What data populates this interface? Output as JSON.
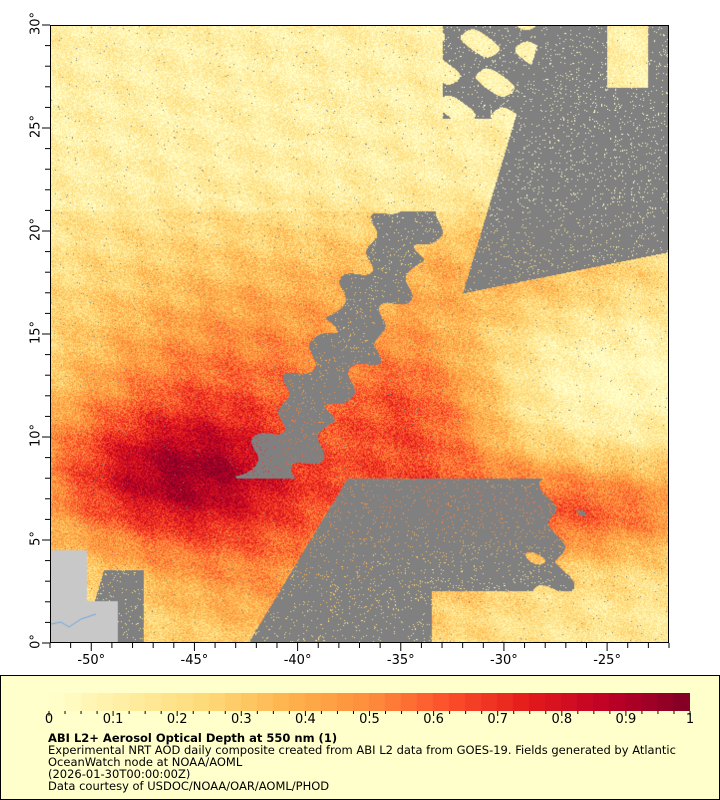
{
  "map": {
    "variable": "Aerosol Optical Depth at 550 nm",
    "lat_range": [
      0,
      30
    ],
    "lon_range": [
      -52,
      -22
    ],
    "mask_color": "#808080",
    "land_color": "#c8c8c8",
    "river_color": "#6fa8dc",
    "y_ticks": [
      "0°",
      "5°",
      "10°",
      "15°",
      "20°",
      "25°",
      "30°"
    ],
    "x_ticks": [
      "-50°",
      "-45°",
      "-40°",
      "-35°",
      "-30°",
      "-25°"
    ]
  },
  "colorbar": {
    "range": [
      0,
      1
    ],
    "colors": [
      "#ffffcc",
      "#ffeda0",
      "#fed976",
      "#feb24c",
      "#fd8d3c",
      "#fc4e2a",
      "#e31a1c",
      "#bd0026",
      "#800026"
    ],
    "tick_labels": [
      "0",
      "0.1",
      "0.2",
      "0.3",
      "0.4",
      "0.5",
      "0.6",
      "0.7",
      "0.8",
      "0.9",
      "1"
    ]
  },
  "legend": {
    "title": "ABI L2+ Aerosol Optical Depth at 550 nm (1)",
    "line1": "Experimental NRT AOD daily composite created from ABI L2 data from GOES-19. Fields generated by Atlantic",
    "line2": "OceanWatch node at NOAA/AOML",
    "line3": "(2026-01-30T00:00:00Z)",
    "line4": "Data courtesy of USDOC/NOAA/OAR/AOML/PHOD"
  }
}
